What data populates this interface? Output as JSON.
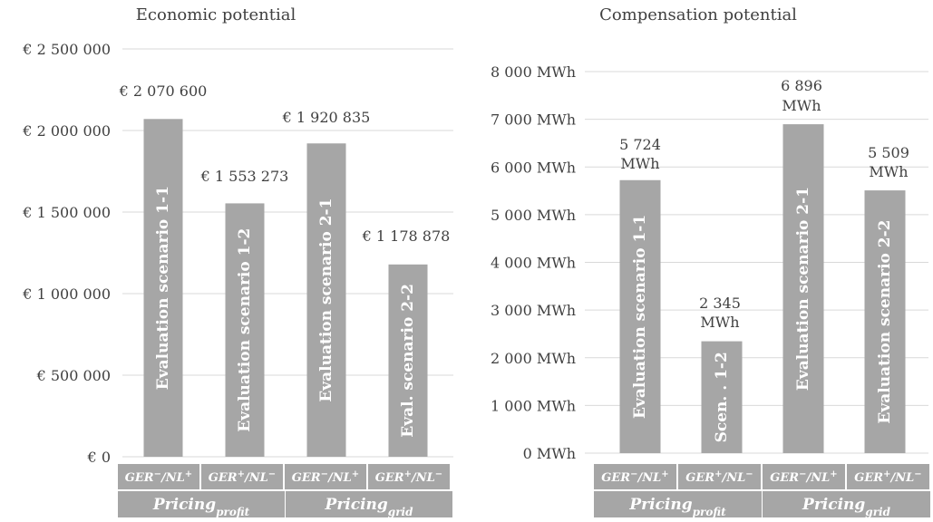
{
  "chart_data": [
    {
      "type": "bar",
      "title": "Economic potential",
      "ylim": [
        0,
        2500000
      ],
      "ytick_values": [
        0,
        500000,
        1000000,
        1500000,
        2000000,
        2500000
      ],
      "ytick_labels": [
        "€  0",
        "€ 500 000",
        "€ 1 000 000",
        "€ 1 500 000",
        "€ 2 000 000",
        "€ 2 500 000"
      ],
      "grid": true,
      "bar_color": "#a6a6a6",
      "values": [
        2070600,
        1553273,
        1920835,
        1178878
      ],
      "data_labels": [
        "€ 2 070 600",
        "€ 1 553 273",
        "€ 1 920 835",
        "€ 1 178 878"
      ],
      "bar_labels": [
        "Evaluation scenario 1-1",
        "Evaluation scenario 1-2",
        "Evaluation scenario 2-1",
        "Eval. scenario 2-2"
      ],
      "categories": [
        {
          "base": "GER",
          "sup1": "−",
          "mid": "/NL",
          "sup2": "+"
        },
        {
          "base": "GER",
          "sup1": "+",
          "mid": "/NL",
          "sup2": "−"
        },
        {
          "base": "GER",
          "sup1": "−",
          "mid": "/NL",
          "sup2": "+"
        },
        {
          "base": "GER",
          "sup1": "+",
          "mid": "/NL",
          "sup2": "−"
        }
      ],
      "groups": [
        {
          "base": "Pricing",
          "sub": "profit"
        },
        {
          "base": "Pricing",
          "sub": "grid"
        }
      ]
    },
    {
      "type": "bar",
      "title": "Compensation potential",
      "ylim": [
        0,
        8000
      ],
      "ytick_values": [
        0,
        1000,
        2000,
        3000,
        4000,
        5000,
        6000,
        7000,
        8000
      ],
      "ytick_labels": [
        "0 MWh",
        "1 000 MWh",
        "2 000 MWh",
        "3 000 MWh",
        "4 000 MWh",
        "5 000 MWh",
        "6 000 MWh",
        "7 000 MWh",
        "8 000 MWh"
      ],
      "grid": true,
      "bar_color": "#a6a6a6",
      "values": [
        5724,
        2345,
        6896,
        5509
      ],
      "data_labels": [
        [
          "5 724",
          "MWh"
        ],
        [
          "2 345",
          "MWh"
        ],
        [
          "6 896",
          "MWh"
        ],
        [
          "5 509",
          "MWh"
        ]
      ],
      "bar_labels": [
        "Evaluation scenario 1-1",
        "Scen. . 1-2",
        "Evaluation scenario 2-1",
        "Evaluation scenario 2-2"
      ],
      "categories": [
        {
          "base": "GER",
          "sup1": "−",
          "mid": "/NL",
          "sup2": "+"
        },
        {
          "base": "GER",
          "sup1": "+",
          "mid": "/NL",
          "sup2": "−"
        },
        {
          "base": "GER",
          "sup1": "−",
          "mid": "/NL",
          "sup2": "+"
        },
        {
          "base": "GER",
          "sup1": "+",
          "mid": "/NL",
          "sup2": "−"
        }
      ],
      "groups": [
        {
          "base": "Pricing",
          "sub": "profit"
        },
        {
          "base": "Pricing",
          "sub": "grid"
        }
      ]
    }
  ]
}
